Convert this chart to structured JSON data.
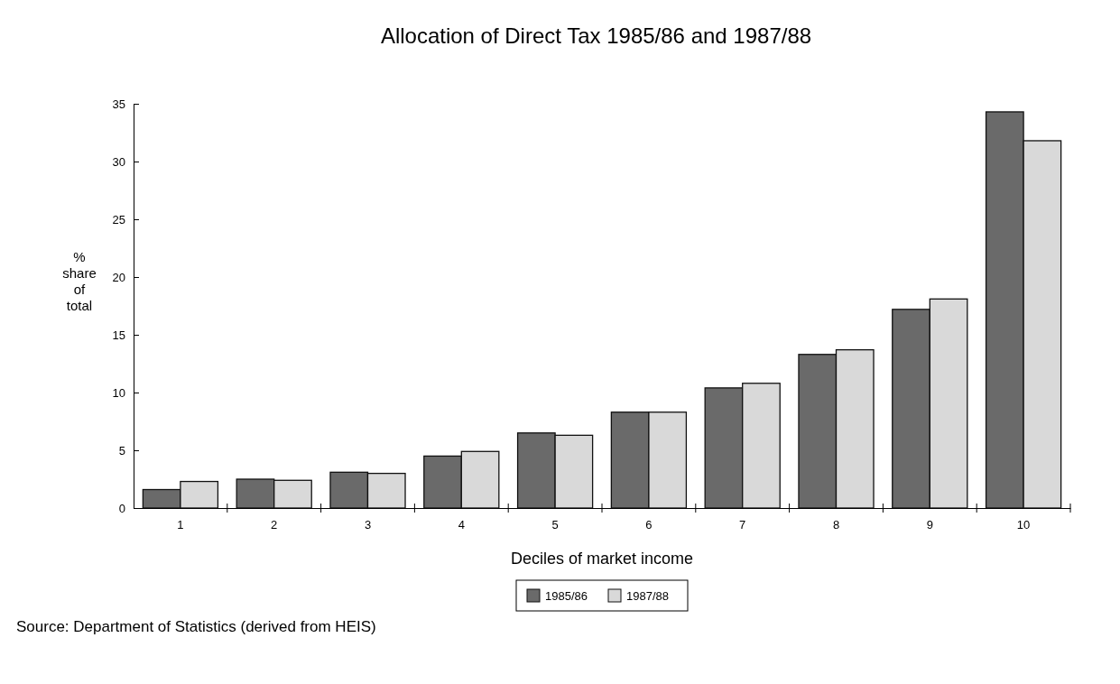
{
  "chart_data": {
    "type": "bar",
    "title": "Allocation of Direct Tax 1985/86 and 1987/88",
    "xlabel": "Deciles of market income",
    "ylabel": "% share of total",
    "categories": [
      "1",
      "2",
      "3",
      "4",
      "5",
      "6",
      "7",
      "8",
      "9",
      "10"
    ],
    "series": [
      {
        "name": "1985/86",
        "color": "#6a6a6a",
        "values": [
          1.6,
          2.5,
          3.1,
          4.5,
          6.5,
          8.3,
          10.4,
          13.3,
          17.2,
          34.3
        ]
      },
      {
        "name": "1987/88",
        "color": "#d9d9d9",
        "values": [
          2.3,
          2.4,
          3.0,
          4.9,
          6.3,
          8.3,
          10.8,
          13.7,
          18.1,
          31.8
        ]
      }
    ],
    "ylim": [
      0,
      35
    ],
    "yticks": [
      0,
      5,
      10,
      15,
      20,
      25,
      30,
      35
    ],
    "grid": false,
    "legend": "bottom",
    "annotations": [
      "Source: Department of Statistics (derived from HEIS)"
    ]
  }
}
